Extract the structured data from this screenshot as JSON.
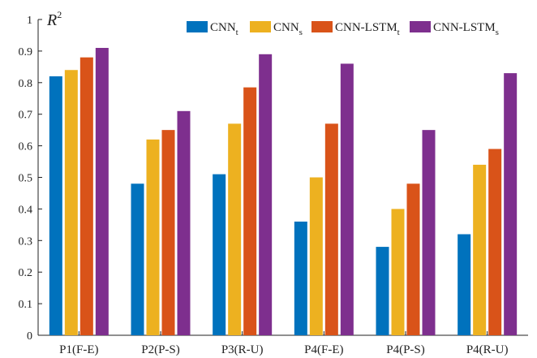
{
  "chart_data": {
    "type": "bar",
    "ylabel": "R",
    "ylabel_superscript": "2",
    "ylim": [
      0,
      1
    ],
    "yticks": [
      "0",
      "0.1",
      "0.2",
      "0.3",
      "0.4",
      "0.5",
      "0.6",
      "0.7",
      "0.8",
      "0.9",
      "1"
    ],
    "grid": false,
    "legend_position": "top-right",
    "categories": [
      "P1(F-E)",
      "P2(P-S)",
      "P3(R-U)",
      "P4(F-E)",
      "P4(P-S)",
      "P4(R-U)"
    ],
    "series": [
      {
        "name": "CNN",
        "subscript": "t",
        "color": "#0072BD",
        "values": [
          0.82,
          0.48,
          0.51,
          0.36,
          0.28,
          0.32
        ]
      },
      {
        "name": "CNN",
        "subscript": "s",
        "color": "#EDB120",
        "values": [
          0.84,
          0.62,
          0.67,
          0.5,
          0.4,
          0.54
        ]
      },
      {
        "name": "CNN-LSTM",
        "subscript": "t",
        "color": "#D95319",
        "values": [
          0.88,
          0.65,
          0.785,
          0.67,
          0.48,
          0.59
        ]
      },
      {
        "name": "CNN-LSTM",
        "subscript": "s",
        "color": "#7E2F8E",
        "values": [
          0.91,
          0.71,
          0.89,
          0.86,
          0.65,
          0.83
        ]
      }
    ]
  }
}
